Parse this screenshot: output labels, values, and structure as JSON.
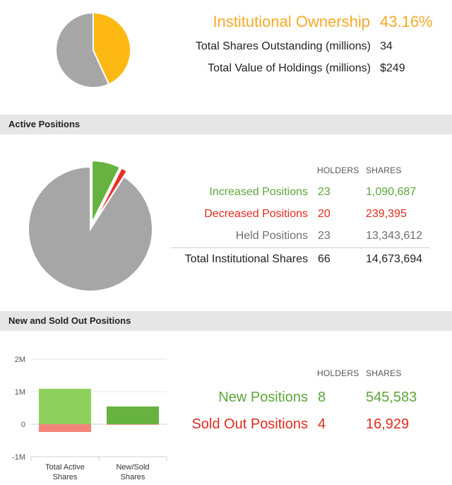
{
  "ownership": {
    "title_label": "Institutional Ownership",
    "title_value": "43.16%",
    "rows": [
      {
        "label": "Total Shares Outstanding (millions)",
        "value": "34"
      },
      {
        "label": "Total Value of Holdings (millions)",
        "value": "$249"
      }
    ]
  },
  "active": {
    "header": "Active Positions",
    "col_holders": "HOLDERS",
    "col_shares": "SHARES",
    "rows": [
      {
        "label": "Increased Positions",
        "holders": "23",
        "shares": "1,090,687"
      },
      {
        "label": "Decreased Positions",
        "holders": "20",
        "shares": "239,395"
      },
      {
        "label": "Held Positions",
        "holders": "23",
        "shares": "13,343,612"
      }
    ],
    "total": {
      "label": "Total Institutional Shares",
      "holders": "66",
      "shares": "14,673,694"
    }
  },
  "newsold": {
    "header": "New and Sold Out Positions",
    "col_holders": "HOLDERS",
    "col_shares": "SHARES",
    "rows": [
      {
        "label": "New Positions",
        "holders": "8",
        "shares": "545,583"
      },
      {
        "label": "Sold Out Positions",
        "holders": "4",
        "shares": "16,929"
      }
    ]
  },
  "colors": {
    "orange": "#f7a928",
    "green": "#5ca63a",
    "red": "#e22a1f",
    "gray": "#6f6f6f",
    "pie_gray": "#a6a6a6",
    "pie_yellow": "#fdb813",
    "pie_green": "#66b340",
    "pie_red": "#e8302a",
    "bar_light_green": "#8ed05c",
    "bar_salmon": "#f4837a",
    "bar_green": "#66b340"
  },
  "chart_data": [
    {
      "type": "pie",
      "slices": [
        {
          "value": 43.16,
          "color": "#fdb813"
        },
        {
          "value": 56.84,
          "color": "#a6a6a6"
        }
      ]
    },
    {
      "type": "pie",
      "slices": [
        {
          "value": 1090687,
          "color": "#66b340",
          "exploded": true
        },
        {
          "value": 239395,
          "color": "#e8302a",
          "exploded": true
        },
        {
          "value": 13343612,
          "color": "#a6a6a6",
          "exploded": false
        }
      ]
    },
    {
      "type": "bar",
      "categories": [
        "Total Active Shares",
        "New/Sold Shares"
      ],
      "series": [
        {
          "values": [
            1090687,
            545583
          ],
          "colors": [
            "#8ed05c",
            "#66b340"
          ]
        },
        {
          "values": [
            -239395,
            -16929
          ],
          "colors": [
            "#f4837a",
            "#f4837a"
          ]
        }
      ],
      "yticks": [
        "2M",
        "1M",
        "0",
        "-1M"
      ],
      "ytick_values": [
        2000000,
        1000000,
        0,
        -1000000
      ],
      "ylim": [
        -1000000,
        2000000
      ]
    }
  ]
}
